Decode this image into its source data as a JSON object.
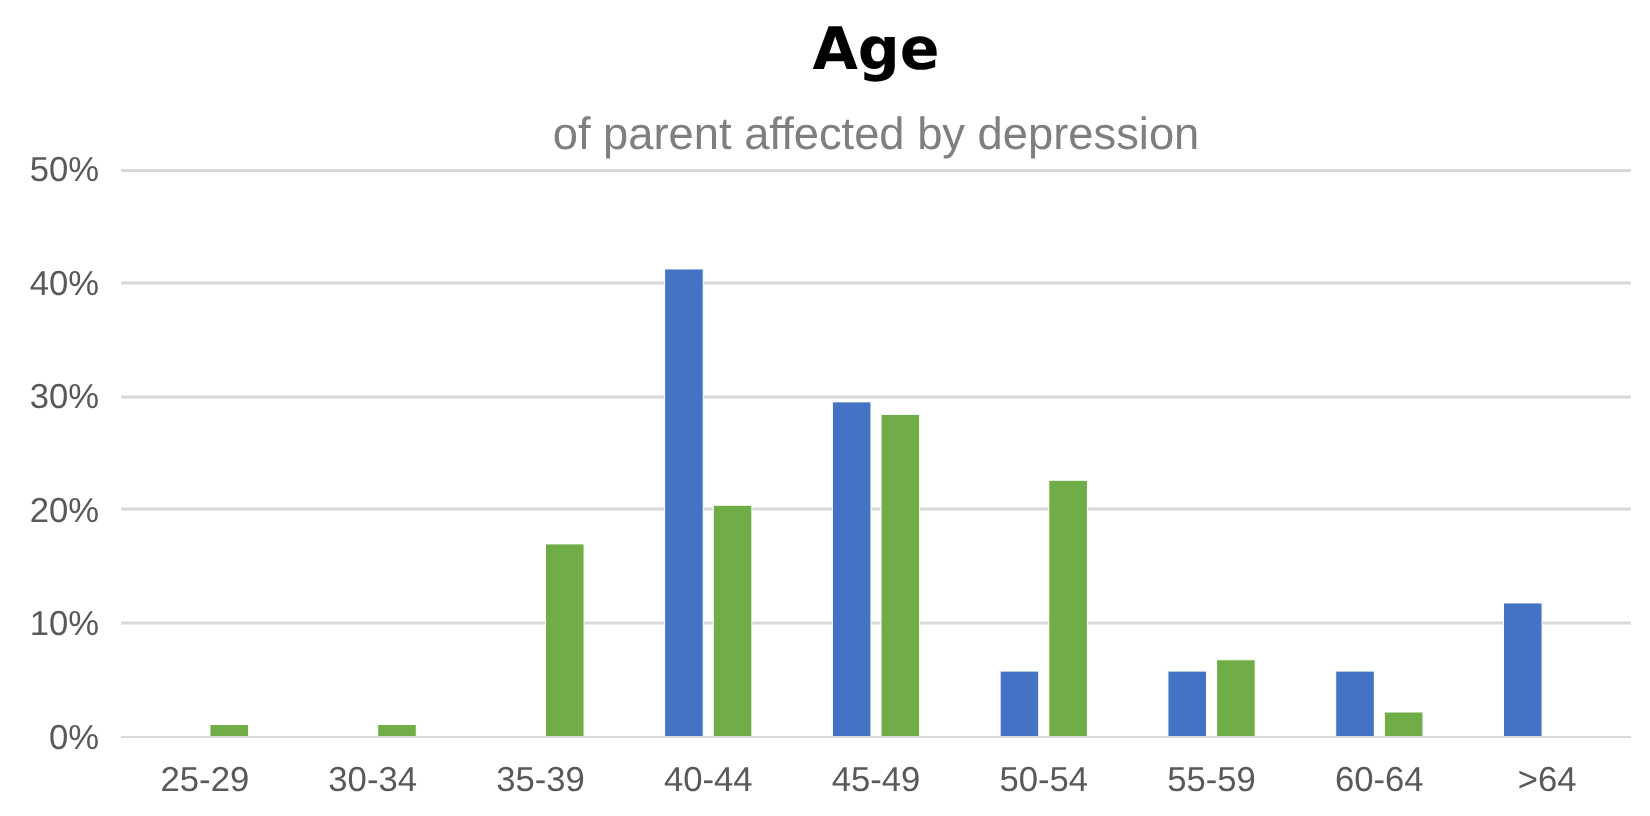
{
  "chart_data": {
    "type": "bar",
    "title": "Age",
    "subtitle": "of parent affected by depression",
    "categories": [
      "25-29",
      "30-34",
      "35-39",
      "40-44",
      "45-49",
      "50-54",
      "55-59",
      "60-64",
      ">64"
    ],
    "series": [
      {
        "color": "#4472c4",
        "values": [
          null,
          null,
          null,
          41.2,
          29.5,
          5.8,
          5.8,
          5.8,
          11.8
        ]
      },
      {
        "color": "#70ad47",
        "values": [
          1.1,
          1.1,
          17.0,
          20.4,
          28.4,
          22.6,
          6.8,
          2.2,
          null
        ]
      }
    ],
    "ylim": [
      0,
      50
    ],
    "yticks": [
      {
        "value": 0,
        "label": "0%"
      },
      {
        "value": 10,
        "label": "10%"
      },
      {
        "value": 20,
        "label": "20%"
      },
      {
        "value": 30,
        "label": "30%"
      },
      {
        "value": 40,
        "label": "40%"
      },
      {
        "value": 50,
        "label": "50%"
      }
    ],
    "grid": "y"
  }
}
